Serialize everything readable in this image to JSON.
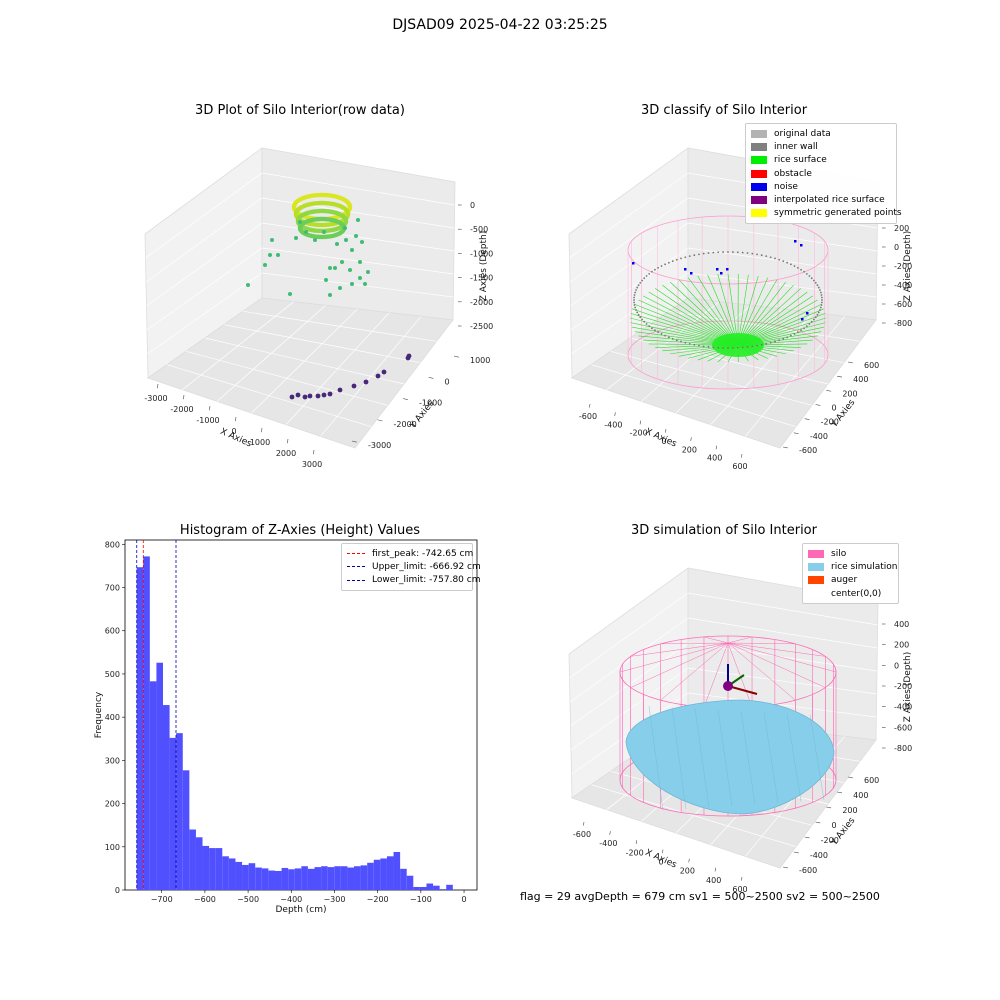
{
  "suptitle": "DJSAD09 2025-04-22 03:25:25",
  "panels": {
    "raw": {
      "title": "3D Plot of Silo Interior(row data)",
      "xlabel": "X Axies",
      "ylabel": "Y Axies",
      "zlabel": "Z Axies (Depth)",
      "xticks": [
        "-3000",
        "-2000",
        "-1000",
        "0",
        "1000",
        "2000",
        "3000"
      ],
      "yticks": [
        "-3000",
        "-2000",
        "-1000",
        "0",
        "1000"
      ],
      "zticks": [
        "0",
        "-500",
        "-1000",
        "-1500",
        "-2000",
        "-2500"
      ]
    },
    "classify": {
      "title": "3D classify of Silo Interior",
      "xlabel": "X Axies",
      "ylabel": "Y Axies",
      "zlabel": "Z Axies (Depth)",
      "xticks": [
        "-600",
        "-400",
        "-200",
        "0",
        "200",
        "400",
        "600"
      ],
      "yticks": [
        "-600",
        "-400",
        "-200",
        "0",
        "200",
        "400",
        "600"
      ],
      "zticks": [
        "200",
        "0",
        "-200",
        "-400",
        "-600",
        "-800"
      ],
      "legend": [
        {
          "label": "original data",
          "color": "#b3b3b3"
        },
        {
          "label": "inner wall",
          "color": "#808080"
        },
        {
          "label": "rice surface",
          "color": "#00ee00"
        },
        {
          "label": "obstacle",
          "color": "#ff0000"
        },
        {
          "label": "noise",
          "color": "#0000ee"
        },
        {
          "label": "interpolated rice surface",
          "color": "#800080"
        },
        {
          "label": "symmetric generated points",
          "color": "#ffff00"
        }
      ]
    },
    "simulation": {
      "title": "3D simulation of Silo Interior",
      "xlabel": "X Axies",
      "ylabel": "Y Axies",
      "zlabel": "Z Axies (Depth)",
      "xticks": [
        "-600",
        "-400",
        "-200",
        "0",
        "200",
        "400",
        "600"
      ],
      "yticks": [
        "-600",
        "-400",
        "-200",
        "0",
        "200",
        "400",
        "600"
      ],
      "zticks": [
        "400",
        "200",
        "0",
        "-200",
        "-400",
        "-600",
        "-800"
      ],
      "legend": [
        {
          "label": "silo",
          "color": "#ff69b4"
        },
        {
          "label": "rice simulation",
          "color": "#87ceeb"
        },
        {
          "label": "auger",
          "color": "#ff4500"
        },
        {
          "label": "center(0,0)",
          "color": "#ffffff"
        }
      ]
    }
  },
  "footer": "flag = 29  avgDepth = 679 cm  sv1 = 500~2500  sv2 = 500~2500",
  "chart_data": {
    "type": "bar",
    "title": "Histogram of Z-Axies (Height) Values",
    "xlabel": "Depth (cm)",
    "ylabel": "Frequency",
    "xlim": [
      -785,
      30
    ],
    "ylim": [
      0,
      810
    ],
    "xticks": [
      -700,
      -600,
      -500,
      -400,
      -300,
      -200,
      -100,
      0
    ],
    "yticks": [
      0,
      100,
      200,
      300,
      400,
      500,
      600,
      700,
      800
    ],
    "bin_start": -758,
    "bin_width": 15.25,
    "values": [
      747,
      772,
      483,
      526,
      428,
      352,
      363,
      277,
      140,
      122,
      102,
      97,
      97,
      78,
      73,
      65,
      58,
      62,
      52,
      50,
      45,
      44,
      51,
      48,
      50,
      55,
      49,
      53,
      55,
      53,
      55,
      55,
      52,
      55,
      57,
      63,
      70,
      73,
      78,
      88,
      49,
      33,
      7,
      7,
      15,
      10,
      2,
      12
    ],
    "bar_color": "#5050ff",
    "vlines": [
      {
        "label": "first_peak: -742.65 cm",
        "x": -742.65,
        "color": "#ff0000"
      },
      {
        "label": "Upper_limit: -666.92 cm",
        "x": -666.92,
        "color": "#0000aa"
      },
      {
        "label": "Lower_limit: -757.80 cm",
        "x": -757.8,
        "color": "#0000aa"
      }
    ]
  }
}
